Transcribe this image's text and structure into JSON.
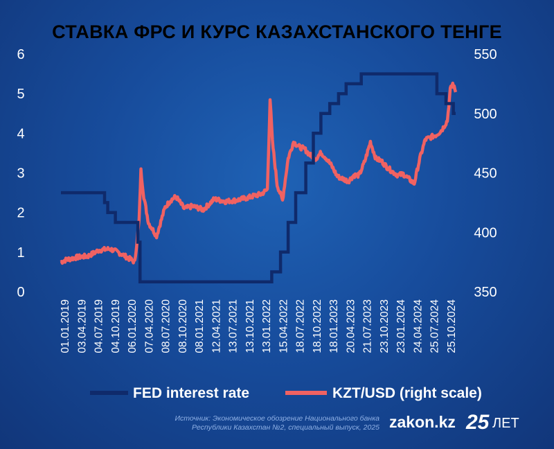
{
  "chart_data": {
    "type": "line",
    "title": "СТАВКА ФРС И КУРС КАЗАХСТАНСКОГО ТЕНГЕ",
    "ylim_left": [
      0,
      6
    ],
    "ylim_right": [
      350,
      550
    ],
    "yticks_left": [
      "0",
      "1",
      "2",
      "3",
      "4",
      "5",
      "6"
    ],
    "yticks_right": [
      "350",
      "400",
      "450",
      "500",
      "550"
    ],
    "x_tick_labels": [
      "01.01.2019",
      "03.04.2019",
      "04.07.2019",
      "04.10.2019",
      "06.01.2020",
      "07.04.2020",
      "08.07.2020",
      "08.10.2020",
      "08.01.2021",
      "12.04.2021",
      "13.07.2021",
      "13.10.2021",
      "13.01.2022",
      "15.04.2022",
      "18.07.2022",
      "18.10.2022",
      "18.01.2023",
      "20.04.2023",
      "21.07.2023",
      "23.10.2023",
      "23.01.2024",
      "24.04.2024",
      "25.07.2024",
      "25.10.2024"
    ],
    "grid": false,
    "legend_position": "bottom",
    "series": [
      {
        "name": "FED interest rate",
        "axis": "left",
        "color": "#0f2a6b",
        "x": [
          "2019-01-01",
          "2019-07-31",
          "2019-08-31",
          "2019-09-18",
          "2019-10-30",
          "2020-03-03",
          "2020-03-15",
          "2022-03-16",
          "2022-05-04",
          "2022-06-15",
          "2022-07-27",
          "2022-09-21",
          "2022-11-02",
          "2022-12-14",
          "2023-02-01",
          "2023-03-22",
          "2023-05-03",
          "2023-07-26",
          "2024-09-18",
          "2024-11-07",
          "2024-12-18",
          "2024-12-31"
        ],
        "values": [
          2.5,
          2.5,
          2.25,
          2.0,
          1.75,
          1.25,
          0.25,
          0.5,
          1.0,
          1.75,
          2.5,
          3.25,
          4.0,
          4.5,
          4.75,
          5.0,
          5.25,
          5.5,
          5.0,
          4.75,
          4.5,
          4.5
        ]
      },
      {
        "name": "KZT/USD (right scale)",
        "axis": "right",
        "color": "#f06262",
        "x": [
          "2019-01-01",
          "2019-02-01",
          "2019-04-01",
          "2019-06-01",
          "2019-08-01",
          "2019-10-01",
          "2019-12-01",
          "2020-02-15",
          "2020-03-10",
          "2020-03-20",
          "2020-04-05",
          "2020-05-01",
          "2020-06-15",
          "2020-08-01",
          "2020-09-01",
          "2020-10-01",
          "2020-11-15",
          "2021-01-01",
          "2021-03-01",
          "2021-05-01",
          "2021-07-01",
          "2021-09-01",
          "2021-11-01",
          "2021-12-15",
          "2022-01-15",
          "2022-02-20",
          "2022-03-07",
          "2022-03-20",
          "2022-04-15",
          "2022-05-15",
          "2022-06-15",
          "2022-07-15",
          "2022-08-15",
          "2022-09-15",
          "2022-10-15",
          "2022-11-15",
          "2022-12-15",
          "2023-01-15",
          "2023-02-15",
          "2023-03-15",
          "2023-04-15",
          "2023-05-15",
          "2023-06-15",
          "2023-07-15",
          "2023-08-15",
          "2023-09-15",
          "2023-10-15",
          "2023-11-15",
          "2023-12-15",
          "2024-01-15",
          "2024-02-15",
          "2024-03-15",
          "2024-04-15",
          "2024-05-15",
          "2024-06-15",
          "2024-07-15",
          "2024-08-15",
          "2024-09-15",
          "2024-10-15",
          "2024-11-15",
          "2024-12-01",
          "2024-12-15",
          "2024-12-31"
        ],
        "values": [
          375,
          377,
          379,
          380,
          385,
          386,
          382,
          375,
          410,
          452,
          430,
          408,
          397,
          421,
          427,
          430,
          420,
          422,
          419,
          428,
          426,
          427,
          429,
          431,
          432,
          436,
          512,
          476,
          440,
          427,
          462,
          476,
          472,
          470,
          465,
          462,
          467,
          462,
          455,
          447,
          445,
          443,
          448,
          448,
          460,
          476,
          462,
          460,
          455,
          451,
          448,
          449,
          445,
          441,
          462,
          478,
          480,
          482,
          486,
          494,
          520,
          525,
          518
        ]
      }
    ]
  },
  "legend": {
    "items": [
      {
        "label": "FED interest rate",
        "color": "#0f2a6b"
      },
      {
        "label": "KZT/USD (right scale)",
        "color": "#f06262"
      }
    ]
  },
  "footer": {
    "source_line1": "Источник: Экономическое обозрение Национального банка",
    "source_line2": "Республики Казахстан №2, специальный выпуск, 2025",
    "brand": "zakon.kz",
    "brand_number": "25",
    "brand_suffix": "ЛЕТ"
  }
}
